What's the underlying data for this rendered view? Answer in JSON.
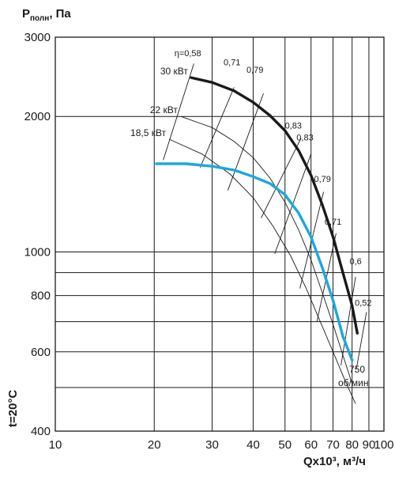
{
  "chart_data": {
    "type": "line",
    "ylabel_main": "P",
    "ylabel_sub": "полн",
    "ylabel_unit": ", Па",
    "xlabel": "Qx10³, м³/ч",
    "temperature_label": "t=20°C",
    "x_scale": "log",
    "y_scale": "log",
    "xlim": [
      10,
      100
    ],
    "ylim": [
      400,
      3000
    ],
    "x_ticks": [
      10,
      20,
      30,
      40,
      50,
      60,
      70,
      80,
      90,
      100
    ],
    "x_tick_labels": [
      "10",
      "20",
      "30",
      "40",
      "50",
      "60",
      "70",
      "80",
      "90",
      "100"
    ],
    "y_gridlines": [
      400,
      500,
      600,
      700,
      800,
      900,
      1000,
      2000,
      3000
    ],
    "y_tick_values": [
      3000,
      2000,
      1000,
      800,
      600,
      400
    ],
    "y_tick_labels": [
      "3000",
      "2000",
      "1000",
      "800",
      "600",
      "400"
    ],
    "speed_label_1": "750",
    "speed_label_2": "об/мин",
    "series": [
      {
        "name": "30 кВт",
        "color": "#1a1a1a",
        "x": [
          25.9,
          30,
          35,
          40,
          45,
          50,
          55,
          60,
          65,
          70,
          75,
          80,
          83
        ],
        "y": [
          2440,
          2380,
          2280,
          2150,
          2010,
          1860,
          1680,
          1480,
          1270,
          1080,
          900,
          760,
          660
        ]
      },
      {
        "name": "18,5 кВт",
        "color": "#1ca7dd",
        "x": [
          20.3,
          25,
          30,
          35,
          40,
          45,
          50,
          55,
          60,
          65,
          70,
          75,
          80
        ],
        "y": [
          1570,
          1570,
          1550,
          1520,
          1470,
          1420,
          1340,
          1220,
          1080,
          920,
          780,
          650,
          575
        ]
      }
    ],
    "power_labels": [
      {
        "text": "30 кВт",
        "x": 25.9,
        "y": 2440
      },
      {
        "text": "22 кВт",
        "x": 24.1,
        "y": 2000
      },
      {
        "text": "18,5 кВт",
        "x": 22.2,
        "y": 1780
      }
    ],
    "power_curves": [
      {
        "x": [
          24.1,
          30,
          35,
          40,
          45,
          50,
          55,
          60,
          65,
          70,
          75,
          80
        ],
        "y": [
          2000,
          1890,
          1760,
          1620,
          1460,
          1290,
          1120,
          960,
          810,
          690,
          590,
          510
        ]
      },
      {
        "x": [
          22.2,
          28,
          34,
          40,
          46,
          52,
          58,
          64,
          70,
          76,
          82
        ],
        "y": [
          1780,
          1650,
          1490,
          1320,
          1140,
          980,
          830,
          700,
          600,
          520,
          460
        ]
      }
    ],
    "efficiency_lines": [
      {
        "label": "η=0,58",
        "x": [
          21.3,
          26.4
        ],
        "y": [
          1600,
          2620
        ]
      },
      {
        "label": "0,71",
        "x": [
          27.6,
          35.0
        ],
        "y": [
          1540,
          2320
        ]
      },
      {
        "label": "0,79",
        "x": [
          33.5,
          43.0
        ],
        "y": [
          1370,
          2250
        ]
      },
      {
        "label": "0,83",
        "x": [
          42.3,
          56.0
        ],
        "y": [
          1190,
          1790
        ]
      },
      {
        "label": "0,83",
        "x": [
          46.5,
          60.0
        ],
        "y": [
          990,
          1650
        ]
      },
      {
        "label": "0,79",
        "x": [
          55.5,
          65.5
        ],
        "y": [
          830,
          1360
        ]
      },
      {
        "label": "0,71",
        "x": [
          62.5,
          71.5
        ],
        "y": [
          700,
          1100
        ]
      },
      {
        "label": "0,6",
        "x": [
          74.0,
          82.0
        ],
        "y": [
          560,
          880
        ]
      },
      {
        "label": "0,52",
        "x": [
          82.5,
          88.5
        ],
        "y": [
          550,
          735
        ]
      }
    ],
    "efficiency_label_positions": [
      {
        "x": 25.3,
        "y": 2720
      },
      {
        "x": 34.5,
        "y": 2600
      },
      {
        "x": 40.5,
        "y": 2500
      },
      {
        "x": 53.0,
        "y": 1880
      },
      {
        "x": 57.5,
        "y": 1770
      },
      {
        "x": 65.0,
        "y": 1430
      },
      {
        "x": 70.0,
        "y": 1150
      },
      {
        "x": 82.0,
        "y": 940
      },
      {
        "x": 86.5,
        "y": 760
      }
    ],
    "bottom_points": [
      {
        "x": 70,
        "y": 505
      },
      {
        "x": 76,
        "y": 510
      },
      {
        "x": 84,
        "y": 540
      }
    ]
  }
}
